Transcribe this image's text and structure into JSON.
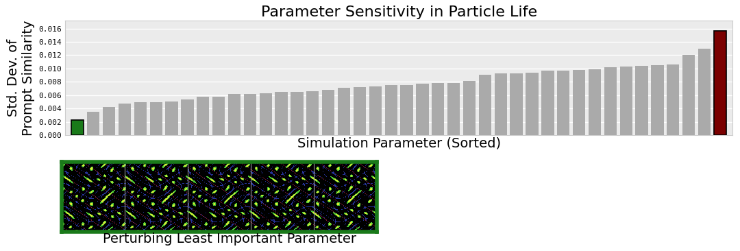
{
  "chart_data": {
    "type": "bar",
    "title": "Parameter Sensitivity in Particle Life",
    "x_label": "Simulation Parameter (Sorted)",
    "y_label": "Std. Dev. of\nPrompt Similarity",
    "categories": [
      null,
      null,
      null,
      null,
      null,
      null,
      null,
      null,
      null,
      null,
      null,
      null,
      null,
      null,
      null,
      null,
      null,
      null,
      null,
      null,
      null,
      null,
      null,
      null,
      null,
      null,
      null,
      null,
      null,
      null,
      null,
      null,
      null,
      null,
      null,
      null,
      null,
      null,
      null,
      null,
      null,
      null
    ],
    "values": [
      0.0023,
      0.0035,
      0.0042,
      0.0047,
      0.0049,
      0.0049,
      0.005,
      0.0054,
      0.0058,
      0.0058,
      0.0062,
      0.0062,
      0.0063,
      0.0065,
      0.0065,
      0.0066,
      0.0068,
      0.0071,
      0.0072,
      0.0073,
      0.0075,
      0.0075,
      0.0077,
      0.0078,
      0.0078,
      0.0081,
      0.0091,
      0.0093,
      0.0093,
      0.0094,
      0.0097,
      0.0097,
      0.0098,
      0.0099,
      0.0102,
      0.0103,
      0.0104,
      0.0105,
      0.0106,
      0.012,
      0.013,
      0.0157
    ],
    "colors": [
      "#1a7a1a",
      "#aaaaaa",
      "#aaaaaa",
      "#aaaaaa",
      "#aaaaaa",
      "#aaaaaa",
      "#aaaaaa",
      "#aaaaaa",
      "#aaaaaa",
      "#aaaaaa",
      "#aaaaaa",
      "#aaaaaa",
      "#aaaaaa",
      "#aaaaaa",
      "#aaaaaa",
      "#aaaaaa",
      "#aaaaaa",
      "#aaaaaa",
      "#aaaaaa",
      "#aaaaaa",
      "#aaaaaa",
      "#aaaaaa",
      "#aaaaaa",
      "#aaaaaa",
      "#aaaaaa",
      "#aaaaaa",
      "#aaaaaa",
      "#aaaaaa",
      "#aaaaaa",
      "#aaaaaa",
      "#aaaaaa",
      "#aaaaaa",
      "#aaaaaa",
      "#aaaaaa",
      "#aaaaaa",
      "#aaaaaa",
      "#aaaaaa",
      "#aaaaaa",
      "#aaaaaa",
      "#aaaaaa",
      "#aaaaaa",
      "#7a0000"
    ],
    "ylim": [
      0,
      0.0172
    ],
    "yticks": [
      {
        "value": 0,
        "label": "0.000"
      },
      {
        "value": 0.002,
        "label": "0.002"
      },
      {
        "value": 0.004,
        "label": "0.004"
      },
      {
        "value": 0.006,
        "label": "0.006"
      },
      {
        "value": 0.008,
        "label": "0.008"
      },
      {
        "value": 0.01,
        "label": "0.010"
      },
      {
        "value": 0.012,
        "label": "0.012"
      },
      {
        "value": 0.014,
        "label": "0.014"
      },
      {
        "value": 0.016,
        "label": "0.016"
      }
    ],
    "grid": true
  },
  "panel": {
    "caption": "Perturbing Least Important Parameter"
  }
}
